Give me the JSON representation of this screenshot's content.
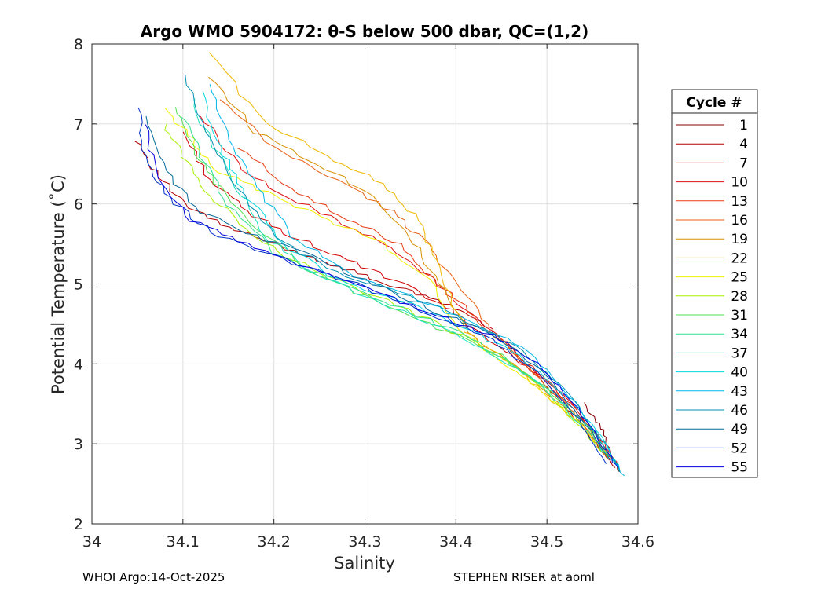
{
  "chart_data": {
    "type": "line",
    "title": "Argo WMO 5904172: θ-S below 500 dbar,  QC=(1,2)",
    "xlabel": "Salinity",
    "ylabel": "Potential Temperature (˚C)",
    "xlim": [
      34,
      34.6
    ],
    "ylim": [
      2,
      8
    ],
    "xticks": [
      "34",
      "34.1",
      "34.2",
      "34.3",
      "34.4",
      "34.5",
      "34.6"
    ],
    "yticks": [
      "2",
      "3",
      "4",
      "5",
      "6",
      "7",
      "8"
    ],
    "grid": true,
    "legend": {
      "title": "Cycle #",
      "position": "right",
      "entries": [
        {
          "label": "1",
          "color": "#800000"
        },
        {
          "label": "4",
          "color": "#b30000"
        },
        {
          "label": "7",
          "color": "#d40000"
        },
        {
          "label": "10",
          "color": "#e01010"
        },
        {
          "label": "13",
          "color": "#e83a10"
        },
        {
          "label": "16",
          "color": "#e86010"
        },
        {
          "label": "19",
          "color": "#d89000"
        },
        {
          "label": "22",
          "color": "#f0b800"
        },
        {
          "label": "25",
          "color": "#f0f000"
        },
        {
          "label": "28",
          "color": "#a8f000"
        },
        {
          "label": "31",
          "color": "#50e050"
        },
        {
          "label": "34",
          "color": "#30e090"
        },
        {
          "label": "37",
          "color": "#20e0c0"
        },
        {
          "label": "40",
          "color": "#00d8e0"
        },
        {
          "label": "43",
          "color": "#00b8e8"
        },
        {
          "label": "46",
          "color": "#0090b0"
        },
        {
          "label": "49",
          "color": "#006898"
        },
        {
          "label": "52",
          "color": "#0030c8"
        },
        {
          "label": "55",
          "color": "#0000e0"
        }
      ]
    },
    "series": [
      {
        "name": "1",
        "color": "#800000",
        "s": [
          34.54,
          34.56,
          34.57,
          34.58
        ],
        "t": [
          3.5,
          3.2,
          2.9,
          2.65
        ]
      },
      {
        "name": "4",
        "color": "#b30000",
        "s": [
          34.05,
          34.07,
          34.1,
          34.15,
          34.2,
          34.25,
          34.3,
          34.35,
          34.4,
          34.43,
          34.45,
          34.48,
          34.5,
          34.53,
          34.555,
          34.575
        ],
        "t": [
          6.8,
          6.4,
          6.0,
          5.7,
          5.5,
          5.3,
          5.1,
          4.9,
          4.7,
          4.5,
          4.3,
          4.0,
          3.7,
          3.35,
          3.0,
          2.7
        ]
      },
      {
        "name": "7",
        "color": "#d40000",
        "s": [
          34.1,
          34.13,
          34.17,
          34.22,
          34.28,
          34.34,
          34.39,
          34.42,
          34.46,
          34.5,
          34.535,
          34.56,
          34.575
        ],
        "t": [
          6.9,
          6.3,
          5.9,
          5.6,
          5.3,
          5.0,
          4.7,
          4.45,
          4.1,
          3.8,
          3.4,
          3.0,
          2.75
        ]
      },
      {
        "name": "10",
        "color": "#e01010",
        "s": [
          34.12,
          34.16,
          34.21,
          34.27,
          34.32,
          34.37,
          34.41,
          34.45,
          34.49,
          34.53,
          34.56,
          34.578
        ],
        "t": [
          7.1,
          6.5,
          6.1,
          5.8,
          5.5,
          5.1,
          4.7,
          4.3,
          3.9,
          3.45,
          3.05,
          2.72
        ]
      },
      {
        "name": "13",
        "color": "#e83a10",
        "s": [
          34.16,
          34.22,
          34.28,
          34.34,
          34.38,
          34.42,
          34.46,
          34.5,
          34.54,
          34.565
        ],
        "t": [
          6.7,
          6.2,
          5.8,
          5.5,
          5.0,
          4.6,
          4.15,
          3.75,
          3.3,
          2.85
        ]
      },
      {
        "name": "16",
        "color": "#e86010",
        "s": [
          34.14,
          34.2,
          34.27,
          34.33,
          34.37,
          34.4,
          34.44,
          34.48,
          34.52,
          34.55,
          34.572
        ],
        "t": [
          7.3,
          6.7,
          6.3,
          5.9,
          5.5,
          5.0,
          4.4,
          3.95,
          3.5,
          3.1,
          2.78
        ]
      },
      {
        "name": "19",
        "color": "#d89000",
        "s": [
          34.13,
          34.18,
          34.25,
          34.31,
          34.35,
          34.38,
          34.42,
          34.47,
          34.51,
          34.545,
          34.57
        ],
        "t": [
          7.6,
          6.9,
          6.5,
          6.1,
          5.6,
          5.0,
          4.3,
          3.95,
          3.55,
          3.15,
          2.8
        ]
      },
      {
        "name": "22",
        "color": "#f0b800",
        "s": [
          34.13,
          34.19,
          34.26,
          34.32,
          34.36,
          34.38,
          34.41,
          34.46,
          34.5,
          34.54,
          34.568
        ],
        "t": [
          7.9,
          7.0,
          6.6,
          6.25,
          5.8,
          5.2,
          4.4,
          4.0,
          3.6,
          3.2,
          2.85
        ]
      },
      {
        "name": "25",
        "color": "#f0f000",
        "s": [
          34.08,
          34.11,
          34.14,
          34.2,
          34.26,
          34.32,
          34.37,
          34.41,
          34.46,
          34.5,
          34.54,
          34.565
        ],
        "t": [
          7.2,
          6.8,
          6.4,
          6.1,
          5.8,
          5.5,
          5.05,
          4.35,
          3.95,
          3.6,
          3.2,
          2.9
        ]
      },
      {
        "name": "28",
        "color": "#a8f000",
        "s": [
          34.08,
          34.1,
          34.13,
          34.17,
          34.22,
          34.3,
          34.38,
          34.44,
          34.49,
          34.53,
          34.56
        ],
        "t": [
          7.0,
          6.6,
          6.1,
          5.7,
          5.3,
          4.9,
          4.5,
          4.15,
          3.75,
          3.3,
          2.9
        ]
      },
      {
        "name": "31",
        "color": "#50e050",
        "s": [
          34.09,
          34.11,
          34.14,
          34.19,
          34.25,
          34.32,
          34.39,
          34.45,
          34.5,
          34.54,
          34.57
        ],
        "t": [
          7.2,
          6.7,
          6.2,
          5.6,
          5.1,
          4.75,
          4.4,
          4.1,
          3.7,
          3.25,
          2.8
        ]
      },
      {
        "name": "34",
        "color": "#30e090",
        "s": [
          34.1,
          34.12,
          34.15,
          34.2,
          34.27,
          34.34,
          34.41,
          34.46,
          34.51,
          34.55,
          34.575
        ],
        "t": [
          7.1,
          6.6,
          6.0,
          5.4,
          5.0,
          4.7,
          4.35,
          4.0,
          3.6,
          3.15,
          2.75
        ]
      },
      {
        "name": "37",
        "color": "#20e0c0",
        "s": [
          34.11,
          34.13,
          34.16,
          34.19,
          34.24,
          34.3,
          34.37,
          34.43,
          34.48,
          34.52,
          34.555,
          34.578
        ],
        "t": [
          7.3,
          6.8,
          6.2,
          5.6,
          5.15,
          4.85,
          4.5,
          4.2,
          3.85,
          3.45,
          3.0,
          2.7
        ]
      },
      {
        "name": "40",
        "color": "#00d8e0",
        "s": [
          34.12,
          34.14,
          34.17,
          34.21,
          34.27,
          34.34,
          34.41,
          34.47,
          34.52,
          34.56,
          34.58
        ],
        "t": [
          7.4,
          6.7,
          6.1,
          5.5,
          5.05,
          4.8,
          4.45,
          4.1,
          3.6,
          3.1,
          2.65
        ]
      },
      {
        "name": "43",
        "color": "#00b8e8",
        "s": [
          34.13,
          34.15,
          34.18,
          34.22,
          34.28,
          34.35,
          34.42,
          34.48,
          34.525,
          34.56,
          34.585
        ],
        "t": [
          7.5,
          6.8,
          6.2,
          5.6,
          5.15,
          4.85,
          4.5,
          4.15,
          3.6,
          3.05,
          2.6
        ]
      },
      {
        "name": "46",
        "color": "#0090b0",
        "s": [
          34.1,
          34.13,
          34.16,
          34.21,
          34.28,
          34.36,
          34.43,
          34.48,
          34.525,
          34.558,
          34.58
        ],
        "t": [
          7.6,
          6.8,
          6.2,
          5.5,
          5.1,
          4.8,
          4.45,
          4.1,
          3.6,
          3.05,
          2.65
        ]
      },
      {
        "name": "49",
        "color": "#006898",
        "s": [
          34.06,
          34.08,
          34.12,
          34.18,
          34.25,
          34.32,
          34.39,
          34.45,
          34.5,
          34.54,
          34.57
        ],
        "t": [
          7.1,
          6.4,
          5.9,
          5.6,
          5.3,
          4.95,
          4.6,
          4.3,
          3.85,
          3.3,
          2.8
        ]
      },
      {
        "name": "52",
        "color": "#0030c8",
        "s": [
          34.05,
          34.06,
          34.09,
          34.14,
          34.21,
          34.29,
          34.36,
          34.43,
          34.49,
          34.535,
          34.565
        ],
        "t": [
          7.2,
          6.5,
          6.0,
          5.6,
          5.3,
          5.0,
          4.65,
          4.35,
          3.9,
          3.3,
          2.75
        ]
      },
      {
        "name": "55",
        "color": "#0000e0",
        "s": [
          34.06,
          34.07,
          34.11,
          34.17,
          34.24,
          34.31,
          34.38,
          34.44,
          34.49,
          34.53,
          34.56,
          34.578
        ],
        "t": [
          7.0,
          6.3,
          5.8,
          5.5,
          5.2,
          4.9,
          4.6,
          4.35,
          4.0,
          3.5,
          3.0,
          2.7
        ]
      }
    ],
    "footer_left": "WHOI Argo:14-Oct-2025",
    "footer_right": "STEPHEN RISER at aoml"
  }
}
